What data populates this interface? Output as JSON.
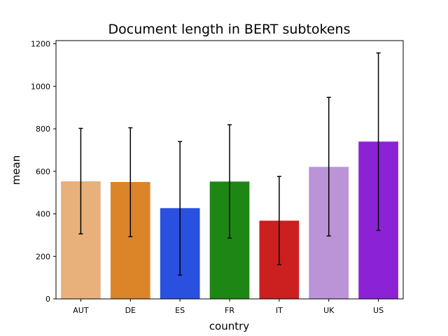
{
  "chart_data": {
    "type": "bar",
    "title": "Document length in BERT subtokens",
    "xlabel": "country",
    "ylabel": "mean",
    "categories": [
      "AUT",
      "DE",
      "ES",
      "FR",
      "IT",
      "UK",
      "US"
    ],
    "values": [
      553,
      550,
      427,
      552,
      368,
      621,
      740
    ],
    "error_low": [
      306,
      293,
      112,
      286,
      161,
      296,
      322
    ],
    "error_high": [
      802,
      805,
      740,
      819,
      576,
      948,
      1157
    ],
    "bar_colors": [
      "#e8b07a",
      "#db8528",
      "#2a50e0",
      "#1e8614",
      "#cb1f20",
      "#bb93d7",
      "#8b22d6"
    ],
    "yticks": [
      "0",
      "200",
      "400",
      "600",
      "800",
      "1000",
      "1200"
    ],
    "ylim": [
      0,
      1215
    ],
    "grid": false,
    "legend": "none"
  }
}
